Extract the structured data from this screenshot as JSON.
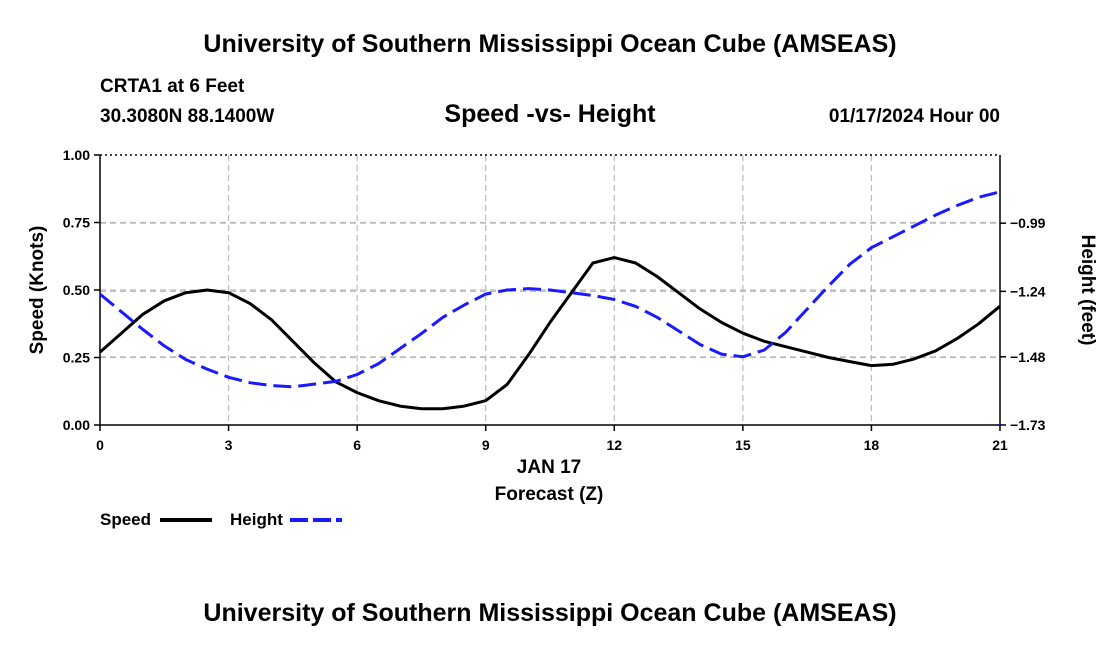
{
  "header": {
    "title": "University of Southern Mississippi Ocean Cube (AMSEAS)",
    "station": "CRTA1 at 6 Feet",
    "coordinates": "30.3080N  88.1400W",
    "subtitle": "Speed -vs- Height",
    "datetime": "01/17/2024 Hour 00"
  },
  "footer": {
    "title": "University of Southern Mississippi Ocean Cube (AMSEAS)"
  },
  "chart_data": {
    "type": "line",
    "x_label_date": "JAN 17",
    "xlabel": "Forecast (Z)",
    "ylabel_left": "Speed (Knots)",
    "ylabel_right": "Height (feet)",
    "xlim": [
      0,
      21
    ],
    "ylim_left": [
      0,
      1
    ],
    "ylim_right": [
      -1.73,
      -0.74
    ],
    "x_ticks": [
      0,
      3,
      6,
      9,
      12,
      15,
      18,
      21
    ],
    "x_tick_labels": [
      "0",
      "3",
      "6",
      "9",
      "12",
      "15",
      "18",
      "21"
    ],
    "y_ticks_left": [
      0,
      0.25,
      0.5,
      0.75,
      1.0
    ],
    "y_tick_labels_left": [
      "0.00",
      "0.25",
      "0.50",
      "0.75",
      "1.00"
    ],
    "y_ticks_right": [
      -1.73,
      -1.48,
      -1.24,
      -0.99
    ],
    "y_tick_labels_right": [
      "−1.73",
      "−1.48",
      "−1.24",
      "−0.99"
    ],
    "grid": true,
    "series": [
      {
        "name": "Speed",
        "axis": "left",
        "color": "#000000",
        "dash": "solid",
        "x": [
          0,
          0.5,
          1,
          1.5,
          2,
          2.5,
          3,
          3.5,
          4,
          4.5,
          5,
          5.5,
          6,
          6.5,
          7,
          7.5,
          8,
          8.5,
          9,
          9.5,
          10,
          10.5,
          11,
          11.5,
          12,
          12.5,
          13,
          13.5,
          14,
          14.5,
          15,
          15.5,
          16,
          16.5,
          17,
          17.5,
          18,
          18.5,
          19,
          19.5,
          20,
          20.5,
          21
        ],
        "values": [
          0.27,
          0.34,
          0.41,
          0.46,
          0.49,
          0.5,
          0.49,
          0.45,
          0.39,
          0.31,
          0.23,
          0.16,
          0.12,
          0.09,
          0.07,
          0.06,
          0.06,
          0.07,
          0.09,
          0.15,
          0.26,
          0.38,
          0.49,
          0.6,
          0.62,
          0.6,
          0.55,
          0.49,
          0.43,
          0.38,
          0.34,
          0.31,
          0.29,
          0.27,
          0.25,
          0.235,
          0.22,
          0.225,
          0.245,
          0.275,
          0.32,
          0.375,
          0.44
        ]
      },
      {
        "name": "Height",
        "axis": "right",
        "color": "#1a1aff",
        "dash": "dashed",
        "x": [
          0,
          0.5,
          1,
          1.5,
          2,
          2.5,
          3,
          3.5,
          4,
          4.5,
          5,
          5.5,
          6,
          6.5,
          7,
          7.5,
          8,
          8.5,
          9,
          9.5,
          10,
          10.5,
          11,
          11.5,
          12,
          12.5,
          13,
          13.5,
          14,
          14.5,
          15,
          15.5,
          16,
          16.5,
          17,
          17.5,
          18,
          18.5,
          19,
          19.5,
          20,
          20.5,
          21
        ],
        "values": [
          -1.25,
          -1.315,
          -1.38,
          -1.44,
          -1.49,
          -1.525,
          -1.555,
          -1.575,
          -1.585,
          -1.59,
          -1.58,
          -1.57,
          -1.545,
          -1.505,
          -1.45,
          -1.395,
          -1.335,
          -1.29,
          -1.25,
          -1.235,
          -1.23,
          -1.235,
          -1.245,
          -1.255,
          -1.27,
          -1.295,
          -1.335,
          -1.385,
          -1.435,
          -1.47,
          -1.48,
          -1.455,
          -1.39,
          -1.305,
          -1.22,
          -1.14,
          -1.08,
          -1.04,
          -1.0,
          -0.96,
          -0.925,
          -0.895,
          -0.875
        ]
      }
    ],
    "legend": {
      "position": "bottom-left",
      "entries": [
        "Speed",
        "Height"
      ]
    }
  }
}
